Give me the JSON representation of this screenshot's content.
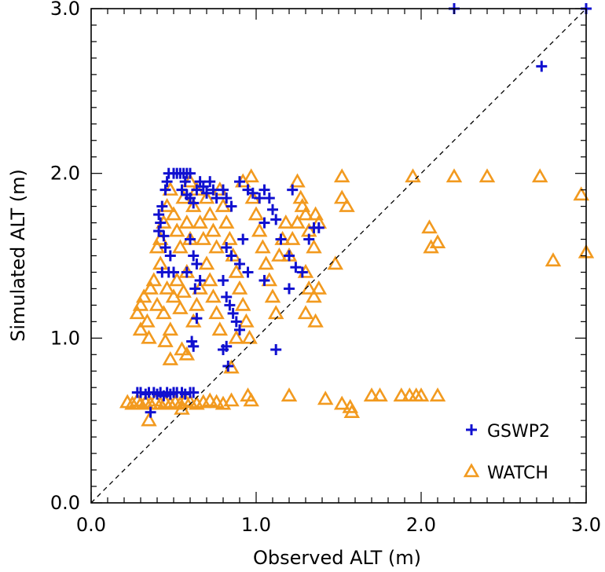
{
  "chart_data": {
    "type": "scatter",
    "xlabel": "Observed ALT (m)",
    "ylabel": "Simulated ALT (m)",
    "xlim": [
      0,
      3
    ],
    "ylim": [
      0,
      3
    ],
    "xticks": [
      "0.0",
      "1.0",
      "2.0",
      "3.0"
    ],
    "yticks": [
      "0.0",
      "1.0",
      "2.0",
      "3.0"
    ],
    "reference_line": "1:1 dashed",
    "legend_position": "bottom-right",
    "series": [
      {
        "name": "GSWP2",
        "marker": "plus",
        "color": "#1010d0",
        "points": [
          [
            0.28,
            0.67
          ],
          [
            0.3,
            0.67
          ],
          [
            0.33,
            0.66
          ],
          [
            0.35,
            0.67
          ],
          [
            0.38,
            0.67
          ],
          [
            0.4,
            0.66
          ],
          [
            0.42,
            0.67
          ],
          [
            0.44,
            0.65
          ],
          [
            0.46,
            0.67
          ],
          [
            0.48,
            0.66
          ],
          [
            0.5,
            0.67
          ],
          [
            0.52,
            0.67
          ],
          [
            0.55,
            0.67
          ],
          [
            0.57,
            0.66
          ],
          [
            0.6,
            0.67
          ],
          [
            0.62,
            0.67
          ],
          [
            0.36,
            0.55
          ],
          [
            0.41,
            1.75
          ],
          [
            0.43,
            1.8
          ],
          [
            0.45,
            1.9
          ],
          [
            0.46,
            1.95
          ],
          [
            0.47,
            2.0
          ],
          [
            0.5,
            2.0
          ],
          [
            0.52,
            2.0
          ],
          [
            0.54,
            2.0
          ],
          [
            0.56,
            2.0
          ],
          [
            0.58,
            2.0
          ],
          [
            0.6,
            2.0
          ],
          [
            0.42,
            1.7
          ],
          [
            0.44,
            1.62
          ],
          [
            0.45,
            1.55
          ],
          [
            0.43,
            1.4
          ],
          [
            0.47,
            1.4
          ],
          [
            0.5,
            1.4
          ],
          [
            0.41,
            1.65
          ],
          [
            0.48,
            1.5
          ],
          [
            0.55,
            1.9
          ],
          [
            0.58,
            1.87
          ],
          [
            0.6,
            1.85
          ],
          [
            0.62,
            1.82
          ],
          [
            0.64,
            1.9
          ],
          [
            0.66,
            1.95
          ],
          [
            0.68,
            1.92
          ],
          [
            0.7,
            1.88
          ],
          [
            0.72,
            1.95
          ],
          [
            0.74,
            1.9
          ],
          [
            0.76,
            1.85
          ],
          [
            0.57,
            1.95
          ],
          [
            0.6,
            1.6
          ],
          [
            0.62,
            1.5
          ],
          [
            0.64,
            1.45
          ],
          [
            0.58,
            1.4
          ],
          [
            0.66,
            1.35
          ],
          [
            0.63,
            1.3
          ],
          [
            0.61,
            0.98
          ],
          [
            0.62,
            0.95
          ],
          [
            0.64,
            1.12
          ],
          [
            0.8,
            1.9
          ],
          [
            0.82,
            1.85
          ],
          [
            0.85,
            1.8
          ],
          [
            0.9,
            1.95
          ],
          [
            0.95,
            1.9
          ],
          [
            0.98,
            1.88
          ],
          [
            1.02,
            1.85
          ],
          [
            0.82,
            1.55
          ],
          [
            0.85,
            1.5
          ],
          [
            0.8,
            1.35
          ],
          [
            0.82,
            1.25
          ],
          [
            0.84,
            1.2
          ],
          [
            0.86,
            1.15
          ],
          [
            0.88,
            1.1
          ],
          [
            0.9,
            1.05
          ],
          [
            0.82,
            0.95
          ],
          [
            0.8,
            0.93
          ],
          [
            0.83,
            0.83
          ],
          [
            0.9,
            1.45
          ],
          [
            0.95,
            1.4
          ],
          [
            0.92,
            1.6
          ],
          [
            1.05,
            1.9
          ],
          [
            1.08,
            1.85
          ],
          [
            1.1,
            1.78
          ],
          [
            1.12,
            1.72
          ],
          [
            1.05,
            1.7
          ],
          [
            1.15,
            1.6
          ],
          [
            1.2,
            1.5
          ],
          [
            1.24,
            1.43
          ],
          [
            1.28,
            1.4
          ],
          [
            1.32,
            1.6
          ],
          [
            1.35,
            1.67
          ],
          [
            1.38,
            1.67
          ],
          [
            1.22,
            1.9
          ],
          [
            1.2,
            1.3
          ],
          [
            1.12,
            0.93
          ],
          [
            1.05,
            1.35
          ],
          [
            2.2,
            3.0
          ],
          [
            3.0,
            3.0
          ],
          [
            2.73,
            2.65
          ]
        ]
      },
      {
        "name": "WATCH",
        "marker": "triangle",
        "color": "#f29a1f",
        "points": [
          [
            0.22,
            0.61
          ],
          [
            0.25,
            0.6
          ],
          [
            0.28,
            0.62
          ],
          [
            0.3,
            0.6
          ],
          [
            0.33,
            0.61
          ],
          [
            0.36,
            0.6
          ],
          [
            0.39,
            0.62
          ],
          [
            0.42,
            0.6
          ],
          [
            0.45,
            0.61
          ],
          [
            0.48,
            0.6
          ],
          [
            0.51,
            0.61
          ],
          [
            0.54,
            0.6
          ],
          [
            0.57,
            0.62
          ],
          [
            0.6,
            0.61
          ],
          [
            0.64,
            0.6
          ],
          [
            0.68,
            0.61
          ],
          [
            0.72,
            0.62
          ],
          [
            0.76,
            0.61
          ],
          [
            0.8,
            0.6
          ],
          [
            0.85,
            0.62
          ],
          [
            0.35,
            0.5
          ],
          [
            0.55,
            0.57
          ],
          [
            0.95,
            0.65
          ],
          [
            0.97,
            0.62
          ],
          [
            1.2,
            0.65
          ],
          [
            1.42,
            0.63
          ],
          [
            1.52,
            0.6
          ],
          [
            1.57,
            0.58
          ],
          [
            1.58,
            0.55
          ],
          [
            1.7,
            0.65
          ],
          [
            1.75,
            0.65
          ],
          [
            1.88,
            0.65
          ],
          [
            1.93,
            0.65
          ],
          [
            1.97,
            0.65
          ],
          [
            2.0,
            0.65
          ],
          [
            2.1,
            0.65
          ],
          [
            0.28,
            1.15
          ],
          [
            0.3,
            1.2
          ],
          [
            0.32,
            1.25
          ],
          [
            0.34,
            1.1
          ],
          [
            0.36,
            1.3
          ],
          [
            0.38,
            1.35
          ],
          [
            0.4,
            1.2
          ],
          [
            0.42,
            1.45
          ],
          [
            0.44,
            1.15
          ],
          [
            0.46,
            1.3
          ],
          [
            0.48,
            1.05
          ],
          [
            0.5,
            1.25
          ],
          [
            0.52,
            1.35
          ],
          [
            0.54,
            1.18
          ],
          [
            0.56,
            1.28
          ],
          [
            0.58,
            1.4
          ],
          [
            0.3,
            1.05
          ],
          [
            0.35,
            1.0
          ],
          [
            0.45,
            0.98
          ],
          [
            0.48,
            0.87
          ],
          [
            0.55,
            0.93
          ],
          [
            0.58,
            0.9
          ],
          [
            0.4,
            1.55
          ],
          [
            0.42,
            1.6
          ],
          [
            0.44,
            1.7
          ],
          [
            0.46,
            1.8
          ],
          [
            0.48,
            1.9
          ],
          [
            0.5,
            1.75
          ],
          [
            0.52,
            1.65
          ],
          [
            0.54,
            1.55
          ],
          [
            0.56,
            1.85
          ],
          [
            0.58,
            1.7
          ],
          [
            0.6,
            1.6
          ],
          [
            0.62,
            1.8
          ],
          [
            0.64,
            1.9
          ],
          [
            0.66,
            1.7
          ],
          [
            0.68,
            1.6
          ],
          [
            0.7,
            1.85
          ],
          [
            0.72,
            1.75
          ],
          [
            0.74,
            1.65
          ],
          [
            0.76,
            1.55
          ],
          [
            0.78,
            1.9
          ],
          [
            0.8,
            1.8
          ],
          [
            0.82,
            1.7
          ],
          [
            0.84,
            1.6
          ],
          [
            0.86,
            1.5
          ],
          [
            0.88,
            1.4
          ],
          [
            0.9,
            1.3
          ],
          [
            0.92,
            1.2
          ],
          [
            0.94,
            1.1
          ],
          [
            0.96,
            1.0
          ],
          [
            0.98,
            1.85
          ],
          [
            1.0,
            1.75
          ],
          [
            1.02,
            1.65
          ],
          [
            1.04,
            1.55
          ],
          [
            1.06,
            1.45
          ],
          [
            1.08,
            1.35
          ],
          [
            1.1,
            1.25
          ],
          [
            1.12,
            1.15
          ],
          [
            1.14,
            1.5
          ],
          [
            1.16,
            1.6
          ],
          [
            1.18,
            1.7
          ],
          [
            0.7,
            1.45
          ],
          [
            0.72,
            1.35
          ],
          [
            0.74,
            1.25
          ],
          [
            0.76,
            1.15
          ],
          [
            0.78,
            1.05
          ],
          [
            0.66,
            1.3
          ],
          [
            0.64,
            1.2
          ],
          [
            0.62,
            1.1
          ],
          [
            0.85,
            0.82
          ],
          [
            0.88,
            1.0
          ],
          [
            0.97,
            1.98
          ],
          [
            0.92,
            1.95
          ],
          [
            0.6,
            1.95
          ],
          [
            1.2,
            1.5
          ],
          [
            1.22,
            1.6
          ],
          [
            1.25,
            1.7
          ],
          [
            1.28,
            1.8
          ],
          [
            1.3,
            1.75
          ],
          [
            1.32,
            1.65
          ],
          [
            1.35,
            1.55
          ],
          [
            1.36,
            1.75
          ],
          [
            1.38,
            1.7
          ],
          [
            1.3,
            1.4
          ],
          [
            1.32,
            1.3
          ],
          [
            1.35,
            1.25
          ],
          [
            1.38,
            1.3
          ],
          [
            1.3,
            1.15
          ],
          [
            1.36,
            1.1
          ],
          [
            1.25,
            1.95
          ],
          [
            1.27,
            1.85
          ],
          [
            1.48,
            1.45
          ],
          [
            1.52,
            1.85
          ],
          [
            1.55,
            1.8
          ],
          [
            1.52,
            1.98
          ],
          [
            1.95,
            1.98
          ],
          [
            2.2,
            1.98
          ],
          [
            2.4,
            1.98
          ],
          [
            2.72,
            1.98
          ],
          [
            2.05,
            1.67
          ],
          [
            2.06,
            1.55
          ],
          [
            2.1,
            1.58
          ],
          [
            2.8,
            1.47
          ],
          [
            2.97,
            1.87
          ],
          [
            3.0,
            1.52
          ]
        ]
      }
    ]
  }
}
